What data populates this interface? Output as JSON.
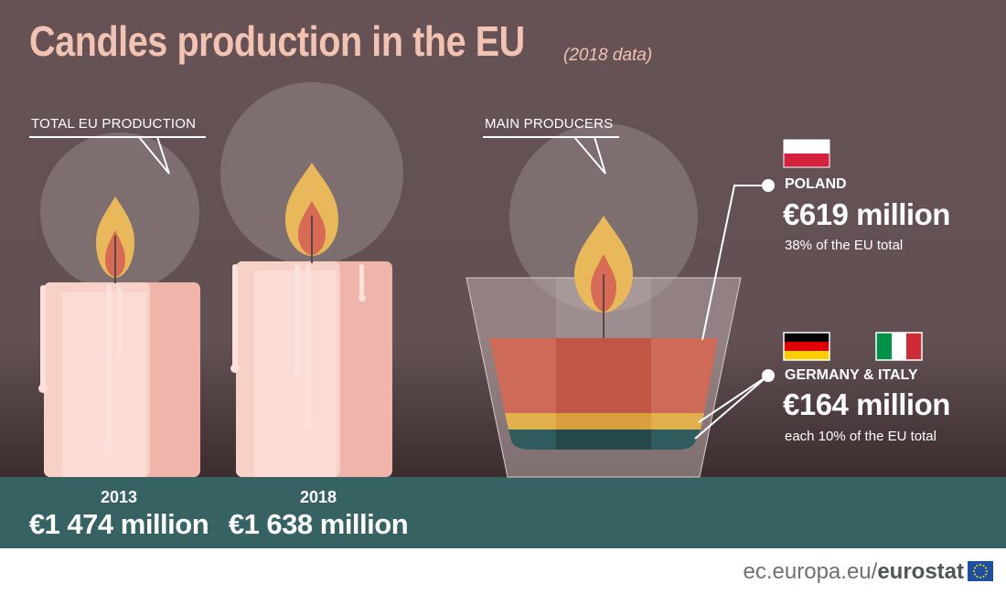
{
  "title": "Candles production in the EU",
  "subtitle": "(2018 data)",
  "labels": {
    "total_eu_production": "TOTAL EU PRODUCTION",
    "main_producers": "MAIN PRODUCERS"
  },
  "total": [
    {
      "year": "2013",
      "value": "€1 474 million"
    },
    {
      "year": "2018",
      "value": "€1 638 million"
    }
  ],
  "producers": {
    "poland": {
      "name": "POLAND",
      "amount": "€619 million",
      "share": "38% of the EU total",
      "flag": "poland-flag"
    },
    "germany_italy": {
      "name": "GERMANY & ITALY",
      "amount": "€164 million",
      "share": "each 10% of the EU total",
      "flags": [
        "germany-flag",
        "italy-flag"
      ]
    }
  },
  "footer": {
    "site": "ec.europa.eu/",
    "brand": "eurostat"
  },
  "colors": {
    "background": "#665254",
    "table_band": "#376264",
    "title": "#f2c2b3",
    "wax_light": "#f7d0c8",
    "wax_dark": "#efb4aa",
    "flame_outer": "#e8b85a",
    "flame_inner": "#d86b55",
    "jar_wax": "#cd6a58",
    "jar_yellow": "#e1b04d",
    "jar_teal": "#2f5a5e"
  }
}
